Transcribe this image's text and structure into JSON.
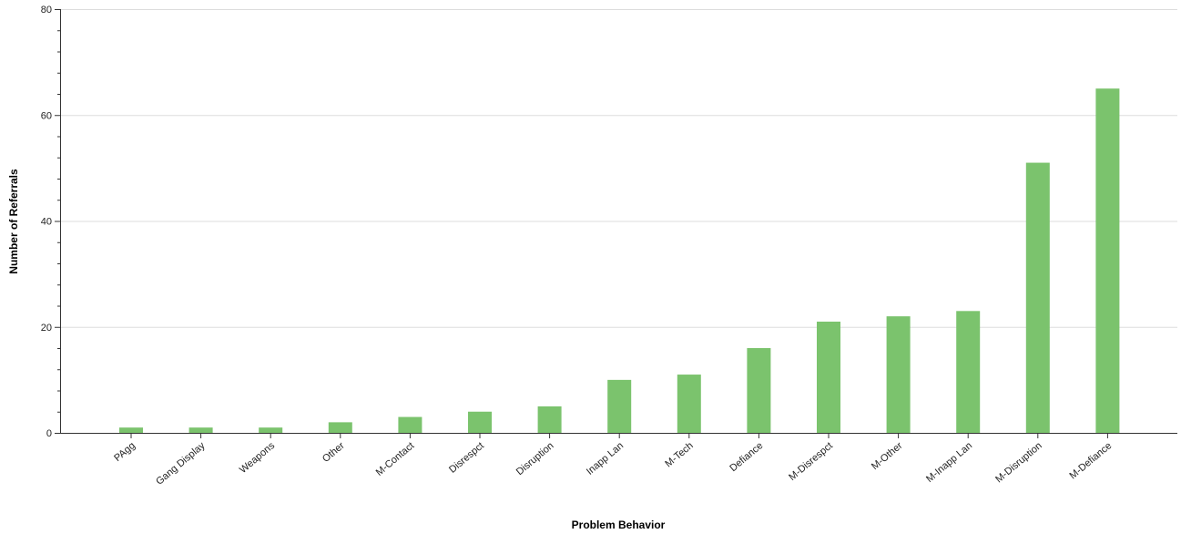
{
  "chart_data": {
    "type": "bar",
    "xlabel": "Problem Behavior",
    "ylabel": "Number of Referrals",
    "ylim": [
      0,
      80
    ],
    "yticks": [
      0,
      20,
      40,
      60,
      80
    ],
    "grid": true,
    "bar_color": "#7bc36d",
    "categories": [
      "PAgg",
      "Gang Display",
      "Weapons",
      "Other",
      "M-Contact",
      "Disrespct",
      "Disruption",
      "Inapp Lan",
      "M-Tech",
      "Defiance",
      "M-Disrespct",
      "M-Other",
      "M-Inapp Lan",
      "M-Disruption",
      "M-Defiance"
    ],
    "values": [
      1,
      1,
      1,
      2,
      3,
      4,
      5,
      10,
      11,
      16,
      21,
      22,
      23,
      51,
      65
    ]
  }
}
